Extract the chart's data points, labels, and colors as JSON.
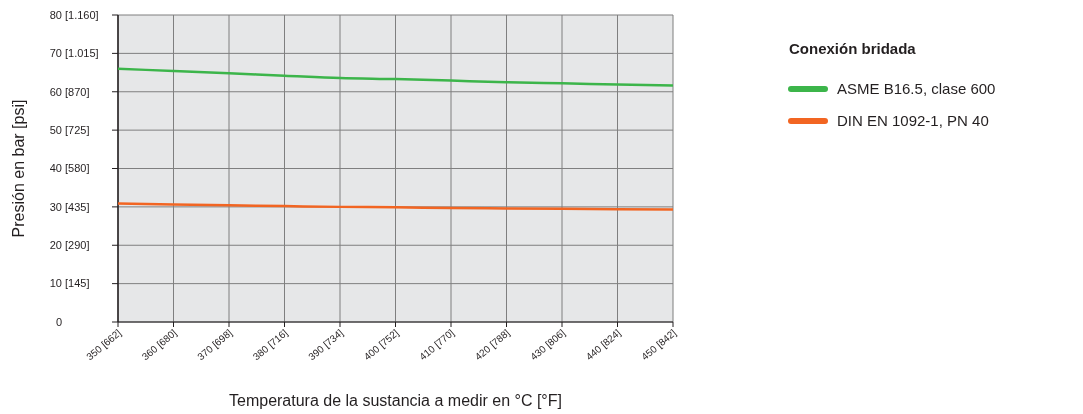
{
  "chart_data": {
    "type": "line",
    "xlabel": "Temperatura de la sustancia a medir en °C [°F]",
    "ylabel": "Presión en bar [psi]",
    "legend_title": "Conexión bridada",
    "legend": "right",
    "categories": [
      "350 [662]",
      "360 [680]",
      "370 [698]",
      "380 [716]",
      "390 [734]",
      "400 [752]",
      "410 [770]",
      "420 [788]",
      "430 [806]",
      "440 [824]",
      "450 [842]"
    ],
    "ylim": [
      0,
      80
    ],
    "yticks": [
      0,
      10,
      20,
      30,
      40,
      50,
      60,
      70,
      80
    ],
    "y2lim": [
      0,
      1160
    ],
    "y2ticks": [
      {
        "value": 145,
        "label": "[145]"
      },
      {
        "value": 290,
        "label": "[290]"
      },
      {
        "value": 435,
        "label": "[435]"
      },
      {
        "value": 580,
        "label": "[580]"
      },
      {
        "value": 725,
        "label": "[725]"
      },
      {
        "value": 870,
        "label": "[870]"
      },
      {
        "value": 1015,
        "label": "[1.015]"
      },
      {
        "value": 1160,
        "label": "[1.160]"
      }
    ],
    "grid": true,
    "marker": "none",
    "line_style": "solid",
    "series": [
      {
        "name": "ASME B16.5, clase 600",
        "color": "#3cb54a",
        "values": [
          66.0,
          65.4,
          64.8,
          64.2,
          63.6,
          63.3,
          62.9,
          62.5,
          62.2,
          61.9,
          61.6
        ]
      },
      {
        "name": "DIN EN 1092-1, PN 40",
        "color": "#f26522",
        "values": [
          30.9,
          30.6,
          30.4,
          30.2,
          30.0,
          29.9,
          29.7,
          29.6,
          29.5,
          29.4,
          29.3
        ]
      }
    ]
  }
}
